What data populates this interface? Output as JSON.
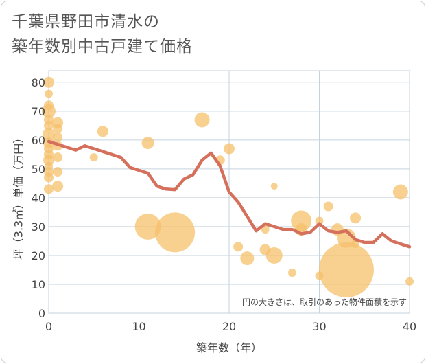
{
  "title_lines": [
    "千葉県野田市清水の",
    "築年数別中古戸建て価格"
  ],
  "colors": {
    "bubble": "#f5c06b",
    "line": "#d4705b",
    "grid": "#c5d3de",
    "plot_bg": "#ffffff"
  },
  "chart_data": {
    "type": "scatter",
    "title": "千葉県野田市清水の築年数別中古戸建て価格",
    "xlabel": "築年数（年）",
    "ylabel": "坪（3.3㎡）単価（万円）",
    "xlim": [
      0,
      40
    ],
    "ylim": [
      0,
      84
    ],
    "xticks": [
      0,
      10,
      20,
      30,
      40
    ],
    "yticks": [
      0,
      10,
      20,
      30,
      40,
      50,
      60,
      70,
      80
    ],
    "grid": true,
    "note": "円の大きさは、取引のあった物件面積を示す",
    "bubbles": [
      {
        "x": 0,
        "y": 80,
        "size": 8
      },
      {
        "x": 0,
        "y": 76,
        "size": 6
      },
      {
        "x": 0,
        "y": 72,
        "size": 7
      },
      {
        "x": 0,
        "y": 70,
        "size": 10
      },
      {
        "x": 0,
        "y": 67,
        "size": 7
      },
      {
        "x": 0,
        "y": 65,
        "size": 7
      },
      {
        "x": 0,
        "y": 62,
        "size": 9
      },
      {
        "x": 0,
        "y": 59,
        "size": 8
      },
      {
        "x": 0,
        "y": 57,
        "size": 7
      },
      {
        "x": 0,
        "y": 55,
        "size": 7
      },
      {
        "x": 0,
        "y": 53,
        "size": 8
      },
      {
        "x": 0,
        "y": 51,
        "size": 6
      },
      {
        "x": 0,
        "y": 49,
        "size": 7
      },
      {
        "x": 0,
        "y": 47,
        "size": 7
      },
      {
        "x": 0,
        "y": 43,
        "size": 7
      },
      {
        "x": 1,
        "y": 66,
        "size": 8
      },
      {
        "x": 1,
        "y": 64,
        "size": 7
      },
      {
        "x": 1,
        "y": 61,
        "size": 7
      },
      {
        "x": 1,
        "y": 58,
        "size": 7
      },
      {
        "x": 1,
        "y": 54,
        "size": 7
      },
      {
        "x": 1,
        "y": 49,
        "size": 7
      },
      {
        "x": 1,
        "y": 44,
        "size": 8
      },
      {
        "x": 5,
        "y": 54,
        "size": 6
      },
      {
        "x": 6,
        "y": 63,
        "size": 8
      },
      {
        "x": 11,
        "y": 59,
        "size": 9
      },
      {
        "x": 11,
        "y": 30,
        "size": 19
      },
      {
        "x": 14,
        "y": 28,
        "size": 29
      },
      {
        "x": 17,
        "y": 67,
        "size": 11
      },
      {
        "x": 19,
        "y": 53,
        "size": 7
      },
      {
        "x": 20,
        "y": 57,
        "size": 8
      },
      {
        "x": 21,
        "y": 23,
        "size": 7
      },
      {
        "x": 22,
        "y": 19,
        "size": 10
      },
      {
        "x": 24,
        "y": 22,
        "size": 8
      },
      {
        "x": 24,
        "y": 29,
        "size": 6
      },
      {
        "x": 25,
        "y": 44,
        "size": 5
      },
      {
        "x": 25,
        "y": 20,
        "size": 12
      },
      {
        "x": 27,
        "y": 14,
        "size": 6
      },
      {
        "x": 28,
        "y": 32,
        "size": 15
      },
      {
        "x": 28,
        "y": 29,
        "size": 9
      },
      {
        "x": 30,
        "y": 32,
        "size": 6
      },
      {
        "x": 30,
        "y": 13,
        "size": 6
      },
      {
        "x": 31,
        "y": 37,
        "size": 7
      },
      {
        "x": 32,
        "y": 29,
        "size": 9
      },
      {
        "x": 33,
        "y": 26,
        "size": 14
      },
      {
        "x": 33,
        "y": 15,
        "size": 40
      },
      {
        "x": 34,
        "y": 33,
        "size": 8
      },
      {
        "x": 34,
        "y": 24,
        "size": 6
      },
      {
        "x": 39,
        "y": 42,
        "size": 11
      },
      {
        "x": 40,
        "y": 11,
        "size": 6
      }
    ],
    "line": {
      "x": [
        0,
        1,
        2,
        3,
        4,
        5,
        6,
        7,
        8,
        9,
        10,
        11,
        12,
        13,
        14,
        15,
        16,
        17,
        18,
        19,
        20,
        21,
        22,
        23,
        24,
        25,
        26,
        27,
        28,
        29,
        30,
        31,
        32,
        33,
        34,
        35,
        36,
        37,
        38,
        39,
        40
      ],
      "y": [
        59.5,
        58.5,
        57.5,
        56.5,
        58,
        57,
        56,
        55,
        54,
        50.5,
        49.5,
        48.5,
        44,
        43,
        42.8,
        46.5,
        48,
        53,
        55.5,
        51,
        42,
        38.5,
        33.5,
        28.5,
        31,
        30,
        29,
        29,
        27.5,
        28,
        31,
        28.5,
        28,
        28.5,
        25.5,
        24.5,
        24.5,
        27.5,
        25,
        24,
        23
      ]
    }
  }
}
